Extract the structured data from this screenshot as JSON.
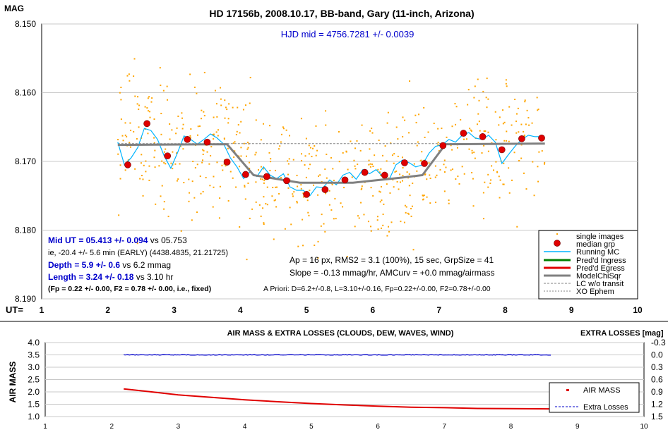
{
  "colors": {
    "single_images": "#ffa500",
    "median_grp": "#e00000",
    "running_mc": "#00b4ff",
    "ingress": "#008000",
    "egress": "#e00000",
    "model": "#808080",
    "lc_no_transit": "#808080",
    "xo_ephem": "#808080",
    "air_mass": "#e00000",
    "extra_losses": "#0000c8",
    "hjd_text": "#0000cc",
    "blue_text": "#0000cc",
    "grid": "#c8c8c8"
  },
  "chart_data": [
    {
      "type": "scatter",
      "title": "HD 17156b, 2008.10.17, BB-band, Gary (11-inch, Arizona)",
      "ylabel": "MAG",
      "xlabel": "UT=",
      "ylim": [
        8.19,
        8.15
      ],
      "xlim": [
        1,
        10
      ],
      "yticks": [
        "8.150",
        "8.160",
        "8.170",
        "8.180",
        "8.190"
      ],
      "xticks": [
        "1",
        "2",
        "3",
        "4",
        "5",
        "6",
        "7",
        "8",
        "9",
        "10"
      ],
      "grid": true,
      "legend_position": "bottom-right",
      "legend": [
        "single images",
        "median grp",
        "Running MC",
        "Pred'd Ingress",
        "Pred'd Egress",
        "ModelChiSqr",
        "LC w/o transit",
        "XO Ephem"
      ],
      "hjd_text": "HJD mid = 4756.7281 +/- 0.0039",
      "series": [
        {
          "name": "median grp",
          "x": [
            2.3,
            2.59,
            2.9,
            3.2,
            3.5,
            3.8,
            4.08,
            4.4,
            4.7,
            5.0,
            5.28,
            5.58,
            5.88,
            6.18,
            6.48,
            6.78,
            7.06,
            7.37,
            7.66,
            7.95,
            8.25,
            8.55
          ],
          "y": [
            8.1705,
            8.1645,
            8.1692,
            8.1668,
            8.1672,
            8.1701,
            8.1719,
            8.1722,
            8.1728,
            8.1748,
            8.1741,
            8.1727,
            8.1716,
            8.172,
            8.1702,
            8.1703,
            8.1677,
            8.1659,
            8.1664,
            8.1683,
            8.1667,
            8.1666
          ]
        },
        {
          "name": "ModelChiSqr",
          "x": [
            2.15,
            3.8,
            4.2,
            4.9,
            5.7,
            6.4,
            6.75,
            7.1,
            8.6
          ],
          "y": [
            8.1676,
            8.1675,
            8.172,
            8.1731,
            8.1731,
            8.1724,
            8.172,
            8.1675,
            8.1674
          ]
        },
        {
          "name": "Running MC",
          "x": [
            2.15,
            2.25,
            2.35,
            2.45,
            2.55,
            2.65,
            2.75,
            2.85,
            2.95,
            3.05,
            3.15,
            3.25,
            3.35,
            3.45,
            3.55,
            3.65,
            3.75,
            3.85,
            3.95,
            4.05,
            4.15,
            4.25,
            4.35,
            4.45,
            4.55,
            4.65,
            4.75,
            4.85,
            4.95,
            5.05,
            5.15,
            5.25,
            5.35,
            5.45,
            5.55,
            5.65,
            5.75,
            5.85,
            5.95,
            6.05,
            6.15,
            6.25,
            6.35,
            6.45,
            6.55,
            6.65,
            6.75,
            6.85,
            6.95,
            7.05,
            7.15,
            7.25,
            7.35,
            7.45,
            7.55,
            7.65,
            7.75,
            7.85,
            7.95,
            8.05,
            8.15,
            8.25,
            8.35,
            8.45,
            8.55
          ],
          "y": [
            8.1672,
            8.1705,
            8.1695,
            8.168,
            8.1652,
            8.1655,
            8.1668,
            8.1692,
            8.171,
            8.1688,
            8.1663,
            8.1668,
            8.1675,
            8.1668,
            8.166,
            8.1666,
            8.1675,
            8.1695,
            8.1708,
            8.1725,
            8.1715,
            8.1722,
            8.1708,
            8.172,
            8.1725,
            8.1718,
            8.1737,
            8.1742,
            8.1742,
            8.175,
            8.1737,
            8.1738,
            8.1727,
            8.1734,
            8.172,
            8.1716,
            8.1726,
            8.1712,
            8.1718,
            8.1712,
            8.1722,
            8.1726,
            8.1705,
            8.1698,
            8.1702,
            8.1708,
            8.1705,
            8.1688,
            8.1678,
            8.1676,
            8.1668,
            8.1672,
            8.1662,
            8.1658,
            8.1666,
            8.1668,
            8.1662,
            8.1672,
            8.1703,
            8.169,
            8.1678,
            8.1668,
            8.1662,
            8.1664,
            8.1664
          ]
        },
        {
          "name": "LC w/o transit",
          "x": [
            2.15,
            8.6
          ],
          "y": [
            8.1674,
            8.1674
          ]
        }
      ],
      "scatter_count": 650,
      "scatter_x_range": [
        2.15,
        8.6
      ],
      "scatter_y_range": [
        8.15,
        8.19
      ]
    },
    {
      "type": "line",
      "title": "AIR MASS & EXTRA LOSSES (CLOUDS, DEW, WAVES, WIND)",
      "ylabel": "AIR MASS",
      "y2label": "EXTRA LOSSES [mag]",
      "ylim": [
        1.0,
        4.0
      ],
      "y2lim": [
        1.5,
        -0.3
      ],
      "xlim": [
        1,
        10
      ],
      "yticks": [
        "4.0",
        "3.5",
        "3.0",
        "2.5",
        "2.0",
        "1.5",
        "1.0"
      ],
      "y2ticks": [
        "-0.3",
        "0.0",
        "0.3",
        "0.6",
        "0.9",
        "1.2",
        "1.5"
      ],
      "xticks": [
        "1",
        "2",
        "3",
        "4",
        "5",
        "6",
        "7",
        "8",
        "9",
        "10"
      ],
      "grid": true,
      "legend_position": "right",
      "series": [
        {
          "name": "AIR MASS",
          "x": [
            2.18,
            2.6,
            3.0,
            3.5,
            4.0,
            4.5,
            5.0,
            5.5,
            6.0,
            6.5,
            7.0,
            7.5,
            8.0,
            8.6
          ],
          "y": [
            2.12,
            2.0,
            1.88,
            1.78,
            1.68,
            1.6,
            1.53,
            1.47,
            1.42,
            1.38,
            1.36,
            1.33,
            1.32,
            1.31
          ]
        },
        {
          "name": "Extra Losses",
          "x": [
            2.18,
            8.6
          ],
          "y": [
            0.0,
            0.0
          ]
        }
      ]
    }
  ],
  "annotations": {
    "mid_ut": "Mid UT = 05.413 +/- 0.094",
    "mid_ut_vs": " vs 05.753",
    "ie": "ie, -20.4 +/- 5.6 min (EARLY) (4438.4835, 21.21725)",
    "depth": "Depth = 5.9 +/- 0.6",
    "depth_vs": " vs 6.2 mmag",
    "length": "Length = 3.24 +/- 0.18",
    "length_vs": " vs 3.10 hr",
    "fp": "(Fp = 0.22 +/- 0.00, F2 = 0.78 +/- 0.00, i.e., fixed)",
    "ap": "Ap = 16 px, RMS2 = 3.1 (100%), 15 sec, GrpSize = 41",
    "slope": "Slope = -0.13 mmag/hr, AMCurv = +0.0 mmag/airmass",
    "apriori": "A Priori: D=6.2+/-0.8, L=3.10+/-0.16, Fp=0.22+/-0.00, F2=0.78+/-0.00"
  }
}
